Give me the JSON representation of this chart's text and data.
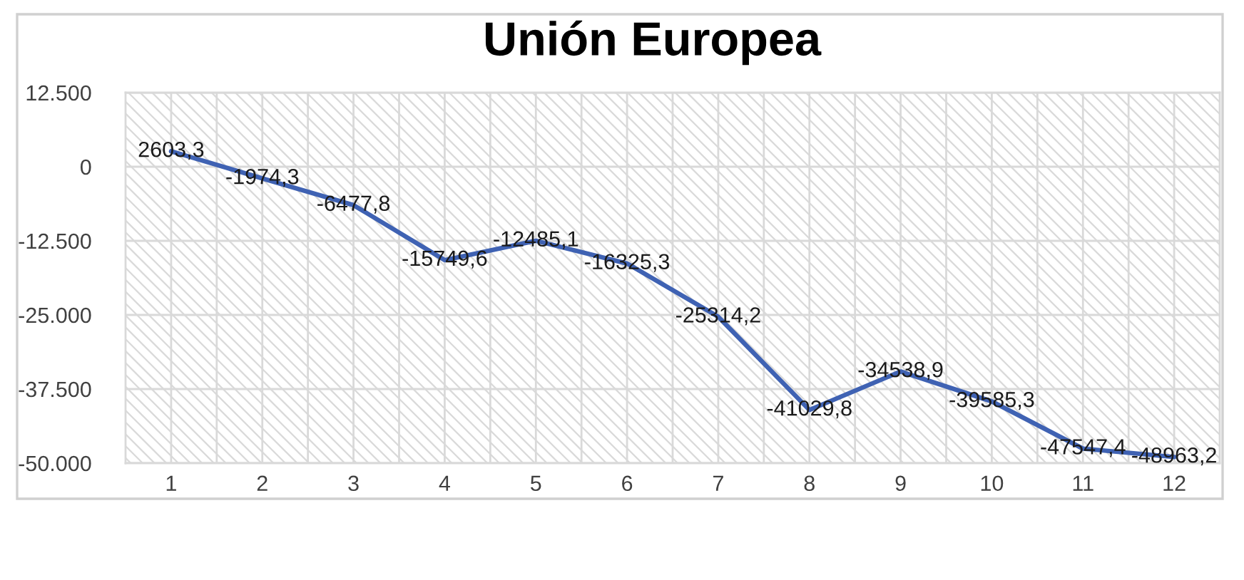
{
  "chart_data": {
    "type": "line",
    "title": "Unión Europea",
    "categories": [
      "1",
      "2",
      "3",
      "4",
      "5",
      "6",
      "7",
      "8",
      "9",
      "10",
      "11",
      "12"
    ],
    "series": [
      {
        "color": "#3f62b3",
        "values": [
          2603.3,
          -1974.3,
          -6477.8,
          -15749.6,
          -12485.1,
          -16325.3,
          -25314.2,
          -41029.8,
          -34538.9,
          -39585.3,
          -47547.4,
          -48963.2
        ],
        "value_labels": [
          "2603,3",
          "-1974,3",
          "-6477,8",
          "-15749,6",
          "-12485,1",
          "-16325,3",
          "-25314,2",
          "-41029,8",
          "-34538,9",
          "-39585,3",
          "-47547,4",
          "-48963,2"
        ]
      }
    ],
    "ylim": [
      -50000,
      12500
    ],
    "yticks": [
      {
        "value": 12500,
        "label": "12.500"
      },
      0,
      {
        "value": -12500,
        "label": "-12.500"
      },
      {
        "value": -25000,
        "label": "-25.000"
      },
      {
        "value": -37500,
        "label": "-37.500"
      },
      {
        "value": -50000,
        "label": "-50.000"
      }
    ],
    "grid": true,
    "marker": "none",
    "line_style": "solid"
  }
}
